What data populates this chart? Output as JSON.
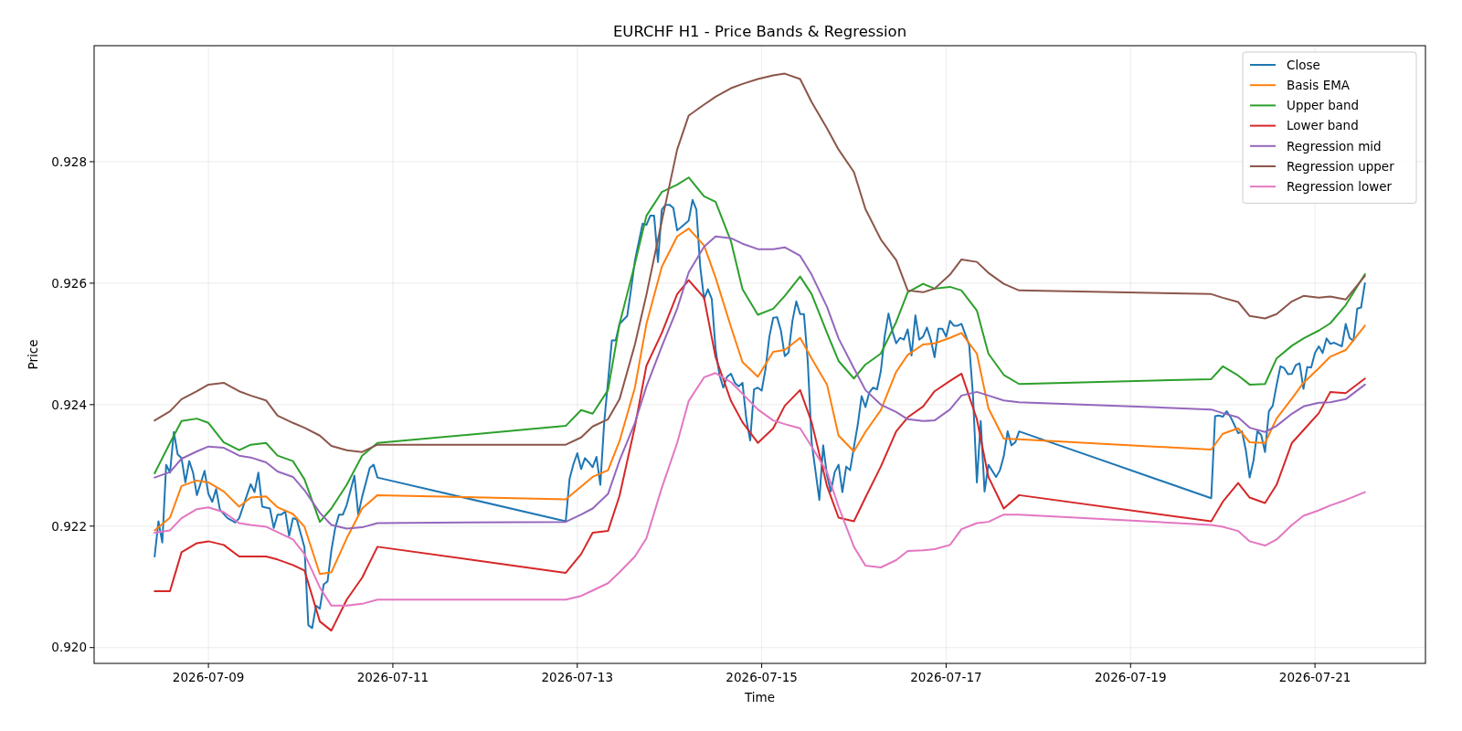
{
  "chart_data": {
    "type": "line",
    "title": "EURCHF H1 - Price Bands & Regression",
    "xlabel": "Time",
    "ylabel": "Price",
    "grid": true,
    "legend": "top right",
    "line_style": "solid",
    "xlim": [
      "2026-07-07T18:15",
      "2026-07-22T04:45"
    ],
    "xticks": [
      "2026-07-09",
      "2026-07-11",
      "2026-07-13",
      "2026-07-15",
      "2026-07-17",
      "2026-07-19",
      "2026-07-21"
    ],
    "ylim": [
      0.91974,
      0.92991
    ],
    "yticks": [
      {
        "value": 0.92,
        "label": "0.920"
      },
      {
        "value": 0.922,
        "label": "0.922"
      },
      {
        "value": 0.924,
        "label": "0.924"
      },
      {
        "value": 0.926,
        "label": "0.926"
      },
      {
        "value": 0.928,
        "label": "0.928"
      }
    ],
    "x": [
      "2026-07-08T10:00",
      "2026-07-08T14:00",
      "2026-07-08T17:00",
      "2026-07-08T21:00",
      "2026-07-09T00:00",
      "2026-07-09T04:00",
      "2026-07-09T08:00",
      "2026-07-09T11:00",
      "2026-07-09T15:00",
      "2026-07-09T18:00",
      "2026-07-09T22:00",
      "2026-07-10T01:00",
      "2026-07-10T05:00",
      "2026-07-10T08:00",
      "2026-07-10T12:00",
      "2026-07-10T16:00",
      "2026-07-10T20:00",
      "2026-07-12T21:00",
      "2026-07-13T01:00",
      "2026-07-13T04:00",
      "2026-07-13T08:00",
      "2026-07-13T11:00",
      "2026-07-13T15:00",
      "2026-07-13T18:00",
      "2026-07-13T22:00",
      "2026-07-14T02:00",
      "2026-07-14T05:00",
      "2026-07-14T09:00",
      "2026-07-14T12:00",
      "2026-07-14T16:00",
      "2026-07-14T19:00",
      "2026-07-14T23:00",
      "2026-07-15T03:00",
      "2026-07-15T06:00",
      "2026-07-15T10:00",
      "2026-07-15T13:00",
      "2026-07-15T17:00",
      "2026-07-15T20:00",
      "2026-07-16T00:00",
      "2026-07-16T03:00",
      "2026-07-16T07:00",
      "2026-07-16T11:00",
      "2026-07-16T14:00",
      "2026-07-16T18:00",
      "2026-07-16T21:00",
      "2026-07-17T01:00",
      "2026-07-17T04:00",
      "2026-07-17T08:00",
      "2026-07-17T11:00",
      "2026-07-17T15:00",
      "2026-07-17T19:00",
      "2026-07-19T21:00",
      "2026-07-20T00:00",
      "2026-07-20T04:00",
      "2026-07-20T07:00",
      "2026-07-20T11:00",
      "2026-07-20T14:00",
      "2026-07-20T18:00",
      "2026-07-20T21:00",
      "2026-07-21T01:00",
      "2026-07-21T04:00",
      "2026-07-21T08:00",
      "2026-07-21T13:00"
    ],
    "series": [
      {
        "name": "Close",
        "color": "#1f77b4",
        "x": [
          "2026-07-08T10:00",
          "2026-07-08T11:00",
          "2026-07-08T12:00",
          "2026-07-08T13:00",
          "2026-07-08T14:00",
          "2026-07-08T15:00",
          "2026-07-08T16:00",
          "2026-07-08T17:00",
          "2026-07-08T18:00",
          "2026-07-08T19:00",
          "2026-07-08T20:00",
          "2026-07-08T21:00",
          "2026-07-08T23:00",
          "2026-07-09T00:00",
          "2026-07-09T01:00",
          "2026-07-09T02:00",
          "2026-07-09T03:00",
          "2026-07-09T05:00",
          "2026-07-09T07:00",
          "2026-07-09T08:00",
          "2026-07-09T11:00",
          "2026-07-09T12:00",
          "2026-07-09T13:00",
          "2026-07-09T14:00",
          "2026-07-09T16:00",
          "2026-07-09T17:00",
          "2026-07-09T18:00",
          "2026-07-09T19:00",
          "2026-07-09T20:00",
          "2026-07-09T21:00",
          "2026-07-09T22:00",
          "2026-07-09T23:00",
          "2026-07-10T01:00",
          "2026-07-10T02:00",
          "2026-07-10T03:00",
          "2026-07-10T04:00",
          "2026-07-10T05:00",
          "2026-07-10T06:00",
          "2026-07-10T07:00",
          "2026-07-10T08:00",
          "2026-07-10T09:00",
          "2026-07-10T10:00",
          "2026-07-10T11:00",
          "2026-07-10T12:00",
          "2026-07-10T14:00",
          "2026-07-10T15:00",
          "2026-07-10T16:00",
          "2026-07-10T18:00",
          "2026-07-10T19:00",
          "2026-07-10T20:00",
          "2026-07-12T21:00",
          "2026-07-12T22:00",
          "2026-07-12T23:00",
          "2026-07-13T00:00",
          "2026-07-13T01:00",
          "2026-07-13T02:00",
          "2026-07-13T03:00",
          "2026-07-13T04:00",
          "2026-07-13T05:00",
          "2026-07-13T06:00",
          "2026-07-13T07:00",
          "2026-07-13T08:00",
          "2026-07-13T09:00",
          "2026-07-13T10:00",
          "2026-07-13T11:00",
          "2026-07-13T13:00",
          "2026-07-13T14:00",
          "2026-07-13T15:00",
          "2026-07-13T17:00",
          "2026-07-13T18:00",
          "2026-07-13T19:00",
          "2026-07-13T20:00",
          "2026-07-13T21:00",
          "2026-07-13T22:00",
          "2026-07-13T23:00",
          "2026-07-14T00:00",
          "2026-07-14T01:00",
          "2026-07-14T02:00",
          "2026-07-14T03:00",
          "2026-07-14T05:00",
          "2026-07-14T06:00",
          "2026-07-14T07:00",
          "2026-07-14T08:00",
          "2026-07-14T09:00",
          "2026-07-14T10:00",
          "2026-07-14T11:00",
          "2026-07-14T12:00",
          "2026-07-14T13:00",
          "2026-07-14T14:00",
          "2026-07-14T15:00",
          "2026-07-14T16:00",
          "2026-07-14T17:00",
          "2026-07-14T18:00",
          "2026-07-14T19:00",
          "2026-07-14T20:00",
          "2026-07-14T21:00",
          "2026-07-14T22:00",
          "2026-07-14T23:00",
          "2026-07-15T00:00",
          "2026-07-15T01:00",
          "2026-07-15T02:00",
          "2026-07-15T03:00",
          "2026-07-15T04:00",
          "2026-07-15T05:00",
          "2026-07-15T06:00",
          "2026-07-15T07:00",
          "2026-07-15T08:00",
          "2026-07-15T09:00",
          "2026-07-15T10:00",
          "2026-07-15T11:00",
          "2026-07-15T12:00",
          "2026-07-15T13:00",
          "2026-07-15T15:00",
          "2026-07-15T16:00",
          "2026-07-15T17:00",
          "2026-07-15T18:00",
          "2026-07-15T19:00",
          "2026-07-15T20:00",
          "2026-07-15T21:00",
          "2026-07-15T22:00",
          "2026-07-15T23:00",
          "2026-07-16T00:00",
          "2026-07-16T01:00",
          "2026-07-16T02:00",
          "2026-07-16T03:00",
          "2026-07-16T04:00",
          "2026-07-16T05:00",
          "2026-07-16T06:00",
          "2026-07-16T07:00",
          "2026-07-16T08:00",
          "2026-07-16T09:00",
          "2026-07-16T10:00",
          "2026-07-16T11:00",
          "2026-07-16T12:00",
          "2026-07-16T13:00",
          "2026-07-16T14:00",
          "2026-07-16T15:00",
          "2026-07-16T16:00",
          "2026-07-16T17:00",
          "2026-07-16T18:00",
          "2026-07-16T19:00",
          "2026-07-16T20:00",
          "2026-07-16T21:00",
          "2026-07-16T22:00",
          "2026-07-16T23:00",
          "2026-07-17T00:00",
          "2026-07-17T01:00",
          "2026-07-17T02:00",
          "2026-07-17T03:00",
          "2026-07-17T04:00",
          "2026-07-17T06:00",
          "2026-07-17T07:00",
          "2026-07-17T08:00",
          "2026-07-17T09:00",
          "2026-07-17T10:00",
          "2026-07-17T11:00",
          "2026-07-17T13:00",
          "2026-07-17T14:00",
          "2026-07-17T15:00",
          "2026-07-17T16:00",
          "2026-07-17T17:00",
          "2026-07-17T18:00",
          "2026-07-17T19:00",
          "2026-07-19T21:00",
          "2026-07-19T22:00",
          "2026-07-19T23:00",
          "2026-07-20T00:00",
          "2026-07-20T01:00",
          "2026-07-20T02:00",
          "2026-07-20T03:00",
          "2026-07-20T04:00",
          "2026-07-20T05:00",
          "2026-07-20T06:00",
          "2026-07-20T07:00",
          "2026-07-20T08:00",
          "2026-07-20T09:00",
          "2026-07-20T10:00",
          "2026-07-20T11:00",
          "2026-07-20T12:00",
          "2026-07-20T13:00",
          "2026-07-20T14:00",
          "2026-07-20T15:00",
          "2026-07-20T16:00",
          "2026-07-20T17:00",
          "2026-07-20T18:00",
          "2026-07-20T19:00",
          "2026-07-20T20:00",
          "2026-07-20T21:00",
          "2026-07-20T22:00",
          "2026-07-20T23:00",
          "2026-07-21T00:00",
          "2026-07-21T01:00",
          "2026-07-21T02:00",
          "2026-07-21T03:00",
          "2026-07-21T04:00",
          "2026-07-21T05:00",
          "2026-07-21T06:00",
          "2026-07-21T07:00",
          "2026-07-21T08:00",
          "2026-07-21T09:00",
          "2026-07-21T10:00",
          "2026-07-21T11:00",
          "2026-07-21T12:00",
          "2026-07-21T13:00"
        ],
        "values": [
          0.9215,
          0.92208,
          0.92173,
          0.92301,
          0.92288,
          0.92355,
          0.92318,
          0.92312,
          0.92272,
          0.92307,
          0.92288,
          0.92251,
          0.92291,
          0.92253,
          0.9224,
          0.92261,
          0.92227,
          0.92213,
          0.92206,
          0.92213,
          0.92269,
          0.92256,
          0.92288,
          0.92232,
          0.92229,
          0.92197,
          0.92219,
          0.92219,
          0.92224,
          0.92184,
          0.92213,
          0.92211,
          0.92165,
          0.92037,
          0.92032,
          0.92069,
          0.92064,
          0.92104,
          0.92109,
          0.9216,
          0.92197,
          0.92219,
          0.92219,
          0.92235,
          0.92283,
          0.92219,
          0.92248,
          0.92296,
          0.92301,
          0.9228,
          0.92208,
          0.92278,
          0.92302,
          0.9232,
          0.92294,
          0.92312,
          0.92305,
          0.92297,
          0.92314,
          0.92268,
          0.9237,
          0.92438,
          0.92506,
          0.92506,
          0.92533,
          0.92546,
          0.9259,
          0.92637,
          0.92698,
          0.92696,
          0.92711,
          0.92711,
          0.92635,
          0.92721,
          0.92729,
          0.92729,
          0.92724,
          0.92687,
          0.92692,
          0.92703,
          0.92737,
          0.92721,
          0.92627,
          0.92574,
          0.9259,
          0.92574,
          0.92491,
          0.92449,
          0.92428,
          0.92446,
          0.92451,
          0.92436,
          0.9243,
          0.92436,
          0.92376,
          0.92341,
          0.92425,
          0.92428,
          0.92423,
          0.92459,
          0.92512,
          0.92543,
          0.92544,
          0.92522,
          0.9248,
          0.92486,
          0.92538,
          0.9257,
          0.92549,
          0.92549,
          0.9247,
          0.92338,
          0.92243,
          0.92333,
          0.92283,
          0.92257,
          0.92289,
          0.92301,
          0.92256,
          0.92298,
          0.92292,
          0.9233,
          0.92367,
          0.92414,
          0.92396,
          0.9242,
          0.92428,
          0.92425,
          0.92455,
          0.92512,
          0.9255,
          0.92521,
          0.92501,
          0.9251,
          0.92507,
          0.92524,
          0.92481,
          0.92547,
          0.92507,
          0.92512,
          0.92527,
          0.92507,
          0.92478,
          0.92525,
          0.92525,
          0.92512,
          0.92538,
          0.9253,
          0.9253,
          0.92533,
          0.92498,
          0.92414,
          0.92272,
          0.92373,
          0.92257,
          0.92301,
          0.92281,
          0.92292,
          0.92315,
          0.92356,
          0.92333,
          0.92338,
          0.92356,
          0.92246,
          0.92381,
          0.92382,
          0.9238,
          0.92389,
          0.9238,
          0.92367,
          0.92353,
          0.92356,
          0.92325,
          0.9228,
          0.92308,
          0.92356,
          0.9235,
          0.92322,
          0.92389,
          0.92398,
          0.92432,
          0.92463,
          0.9246,
          0.9245,
          0.92451,
          0.92465,
          0.92468,
          0.92426,
          0.92462,
          0.92461,
          0.92485,
          0.92496,
          0.92485,
          0.92509,
          0.925,
          0.92502,
          0.92499,
          0.92496,
          0.92533,
          0.9251,
          0.92505,
          0.92558,
          0.9256,
          0.926
        ]
      },
      {
        "name": "Basis EMA",
        "color": "#ff7f0e",
        "values": [
          0.92193,
          0.92214,
          0.92266,
          0.92275,
          0.92272,
          0.92257,
          0.92232,
          0.92247,
          0.92249,
          0.92231,
          0.9222,
          0.92199,
          0.92121,
          0.92124,
          0.9218,
          0.92229,
          0.92251,
          0.92244,
          0.92265,
          0.92281,
          0.92292,
          0.9234,
          0.92428,
          0.92533,
          0.92627,
          0.92677,
          0.9269,
          0.92662,
          0.92609,
          0.92528,
          0.9247,
          0.92446,
          0.92487,
          0.9249,
          0.9251,
          0.92476,
          0.92433,
          0.92349,
          0.92323,
          0.92355,
          0.92391,
          0.92454,
          0.92482,
          0.92499,
          0.92501,
          0.9251,
          0.92518,
          0.92484,
          0.92394,
          0.92344,
          0.92343,
          0.92326,
          0.92352,
          0.92361,
          0.92338,
          0.92337,
          0.92377,
          0.9241,
          0.92436,
          0.9246,
          0.92479,
          0.9249,
          0.9253
        ]
      },
      {
        "name": "Upper band",
        "color": "#2ca02c",
        "values": [
          0.92287,
          0.92337,
          0.92373,
          0.92377,
          0.9237,
          0.92338,
          0.92325,
          0.92334,
          0.92337,
          0.92316,
          0.92307,
          0.92277,
          0.92207,
          0.92229,
          0.92268,
          0.92316,
          0.92337,
          0.92365,
          0.92391,
          0.92385,
          0.92424,
          0.92533,
          0.92632,
          0.92711,
          0.9275,
          0.92762,
          0.92774,
          0.92743,
          0.92734,
          0.92669,
          0.9259,
          0.92548,
          0.92558,
          0.92579,
          0.92611,
          0.92582,
          0.92518,
          0.92472,
          0.92443,
          0.92466,
          0.92484,
          0.92536,
          0.92585,
          0.92599,
          0.92591,
          0.92594,
          0.92588,
          0.92555,
          0.92484,
          0.92449,
          0.92434,
          0.92442,
          0.92463,
          0.92448,
          0.92433,
          0.92434,
          0.92476,
          0.92497,
          0.92509,
          0.92522,
          0.92534,
          0.92564,
          0.92615
        ]
      },
      {
        "name": "Lower band",
        "color": "#d62728",
        "values": [
          0.92093,
          0.92093,
          0.92157,
          0.92172,
          0.92175,
          0.92169,
          0.9215,
          0.9215,
          0.9215,
          0.92145,
          0.92136,
          0.92127,
          0.92043,
          0.92028,
          0.92079,
          0.92115,
          0.92166,
          0.92123,
          0.92154,
          0.92189,
          0.92192,
          0.9225,
          0.92364,
          0.92464,
          0.92518,
          0.92582,
          0.92605,
          0.92576,
          0.92478,
          0.92406,
          0.92371,
          0.92337,
          0.92361,
          0.92398,
          0.92424,
          0.92371,
          0.92266,
          0.92214,
          0.92208,
          0.92247,
          0.92298,
          0.92356,
          0.92379,
          0.92397,
          0.92422,
          0.92439,
          0.92451,
          0.92376,
          0.92281,
          0.92229,
          0.92251,
          0.92208,
          0.9224,
          0.92271,
          0.92247,
          0.92238,
          0.92268,
          0.92337,
          0.92358,
          0.92386,
          0.92421,
          0.92419,
          0.92443
        ]
      },
      {
        "name": "Regression mid",
        "color": "#9467bd",
        "values": [
          0.9228,
          0.92289,
          0.92311,
          0.92323,
          0.92331,
          0.92329,
          0.92316,
          0.92313,
          0.92305,
          0.9229,
          0.92281,
          0.92259,
          0.92222,
          0.92202,
          0.92196,
          0.92198,
          0.92205,
          0.92207,
          0.92219,
          0.92229,
          0.92253,
          0.92308,
          0.9237,
          0.9243,
          0.92496,
          0.92558,
          0.92618,
          0.9266,
          0.92677,
          0.92674,
          0.92665,
          0.92656,
          0.92656,
          0.92659,
          0.92645,
          0.92614,
          0.92561,
          0.92509,
          0.9246,
          0.92424,
          0.924,
          0.92388,
          0.92376,
          0.92373,
          0.92374,
          0.92392,
          0.92415,
          0.92421,
          0.92415,
          0.92407,
          0.92404,
          0.92392,
          0.92386,
          0.92379,
          0.92362,
          0.92355,
          0.92365,
          0.92385,
          0.92397,
          0.92403,
          0.92404,
          0.92409,
          0.92433
        ]
      },
      {
        "name": "Regression upper",
        "color": "#8c564b",
        "values": [
          0.92374,
          0.92389,
          0.92409,
          0.92422,
          0.92433,
          0.92436,
          0.92422,
          0.92415,
          0.92407,
          0.92382,
          0.9237,
          0.92362,
          0.92349,
          0.92332,
          0.92325,
          0.92322,
          0.92334,
          0.92334,
          0.92346,
          0.92364,
          0.92376,
          0.92409,
          0.92499,
          0.92581,
          0.92702,
          0.9282,
          0.92876,
          0.92894,
          0.92907,
          0.92921,
          0.92928,
          0.92936,
          0.92942,
          0.92945,
          0.92936,
          0.92898,
          0.92855,
          0.9282,
          0.92783,
          0.92722,
          0.92672,
          0.92638,
          0.92588,
          0.92585,
          0.92591,
          0.92614,
          0.92639,
          0.92635,
          0.92617,
          0.92599,
          0.92588,
          0.92582,
          0.92576,
          0.92569,
          0.92546,
          0.92542,
          0.92549,
          0.9257,
          0.92579,
          0.92576,
          0.92578,
          0.92573,
          0.92612
        ]
      },
      {
        "name": "Regression lower",
        "color": "#e377c2",
        "values": [
          0.92189,
          0.92193,
          0.92213,
          0.92228,
          0.92231,
          0.92223,
          0.92205,
          0.92202,
          0.92199,
          0.9219,
          0.92178,
          0.92154,
          0.92099,
          0.92069,
          0.92069,
          0.92072,
          0.92079,
          0.92079,
          0.92085,
          0.92094,
          0.92106,
          0.92124,
          0.9215,
          0.9218,
          0.92263,
          0.92337,
          0.92406,
          0.92445,
          0.92452,
          0.92437,
          0.92418,
          0.92392,
          0.92374,
          0.92368,
          0.92361,
          0.92331,
          0.92289,
          0.92232,
          0.92166,
          0.92135,
          0.92132,
          0.92144,
          0.92159,
          0.9216,
          0.92162,
          0.92169,
          0.92195,
          0.92205,
          0.92207,
          0.92219,
          0.92219,
          0.92202,
          0.92199,
          0.92192,
          0.92175,
          0.92168,
          0.92178,
          0.92202,
          0.92217,
          0.92226,
          0.92234,
          0.92243,
          0.92256
        ]
      }
    ]
  }
}
